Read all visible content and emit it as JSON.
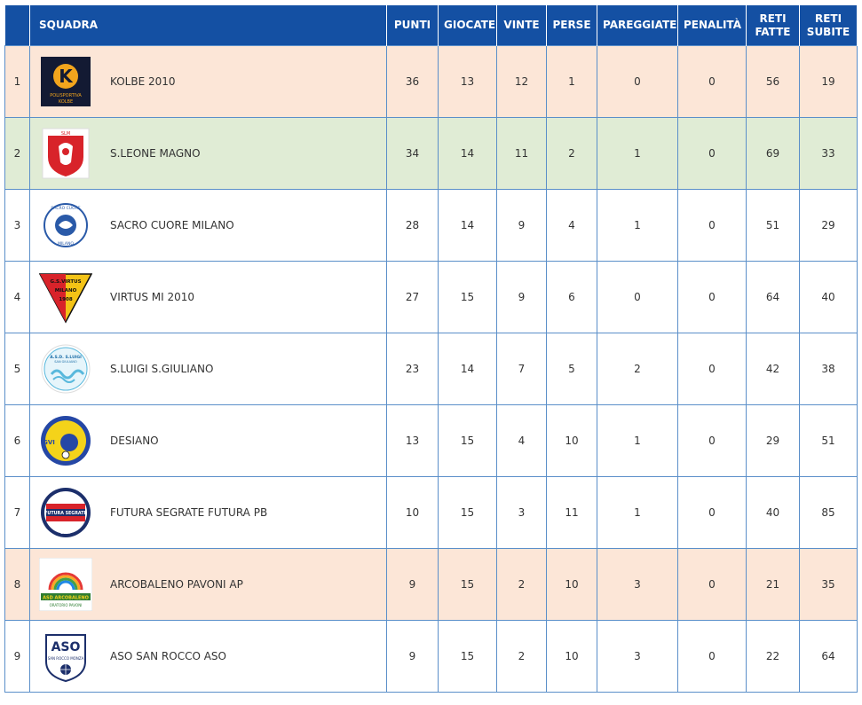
{
  "header": {
    "pos": "",
    "squadra": "SQUADRA",
    "punti": "PUNTI",
    "giocate": "GIOCATE",
    "vinte": "VINTE",
    "perse": "PERSE",
    "pareggiate": "PAREGGIATE",
    "penalita": "PENALITÀ",
    "reti_fatte_1": "RETI",
    "reti_fatte_2": "FATTE",
    "reti_subite_1": "RETI",
    "reti_subite_2": "SUBITE"
  },
  "colors": {
    "header_bg": "#1450a3",
    "row_orange": "#fce6d7",
    "row_green": "#e0ecd5",
    "border": "#5b8fc9"
  },
  "rows": [
    {
      "pos": "1",
      "team": "KOLBE 2010",
      "logo": "kolbe-logo",
      "logo_text_1": "K",
      "logo_text_2": "POLISPORTIVA",
      "logo_text_3": "KOLBE",
      "punti": "36",
      "giocate": "13",
      "vinte": "12",
      "perse": "1",
      "pareggiate": "0",
      "penalita": "0",
      "reti_fatte": "56",
      "reti_subite": "19",
      "highlight": "orange"
    },
    {
      "pos": "2",
      "team": "S.LEONE MAGNO",
      "logo": "leone-magno-logo",
      "logo_text_1": "SLM",
      "punti": "34",
      "giocate": "14",
      "vinte": "11",
      "perse": "2",
      "pareggiate": "1",
      "penalita": "0",
      "reti_fatte": "69",
      "reti_subite": "33",
      "highlight": "green"
    },
    {
      "pos": "3",
      "team": "SACRO CUORE MILANO",
      "logo": "sacro-cuore-logo",
      "logo_text_1": "SACRO CUORE",
      "logo_text_2": "MILANO",
      "punti": "28",
      "giocate": "14",
      "vinte": "9",
      "perse": "4",
      "pareggiate": "1",
      "penalita": "0",
      "reti_fatte": "51",
      "reti_subite": "29",
      "highlight": ""
    },
    {
      "pos": "4",
      "team": "VIRTUS MI 2010",
      "logo": "virtus-logo",
      "logo_text_1": "G.S.VIRTUS",
      "logo_text_2": "MILANO",
      "logo_text_3": "1908",
      "punti": "27",
      "giocate": "15",
      "vinte": "9",
      "perse": "6",
      "pareggiate": "0",
      "penalita": "0",
      "reti_fatte": "64",
      "reti_subite": "40",
      "highlight": ""
    },
    {
      "pos": "5",
      "team": "S.LUIGI S.GIULIANO",
      "logo": "sluigi-logo",
      "logo_text_1": "A.S.D. S.LUIGI",
      "logo_text_2": "SAN GIULIANO",
      "punti": "23",
      "giocate": "14",
      "vinte": "7",
      "perse": "5",
      "pareggiate": "2",
      "penalita": "0",
      "reti_fatte": "42",
      "reti_subite": "38",
      "highlight": ""
    },
    {
      "pos": "6",
      "team": "DESIANO",
      "logo": "desiano-logo",
      "logo_text_1": "GVI",
      "punti": "13",
      "giocate": "15",
      "vinte": "4",
      "perse": "10",
      "pareggiate": "1",
      "penalita": "0",
      "reti_fatte": "29",
      "reti_subite": "51",
      "highlight": ""
    },
    {
      "pos": "7",
      "team": "FUTURA SEGRATE FUTURA PB",
      "logo": "futura-segrate-logo",
      "logo_text_1": "A.S.D.",
      "logo_text_2": "FUTURA SEGRATE",
      "logo_text_3": "2017",
      "punti": "10",
      "giocate": "15",
      "vinte": "3",
      "perse": "11",
      "pareggiate": "1",
      "penalita": "0",
      "reti_fatte": "40",
      "reti_subite": "85",
      "highlight": ""
    },
    {
      "pos": "8",
      "team": "ARCOBALENO PAVONI AP",
      "logo": "arcobaleno-logo",
      "logo_text_1": "ASD ARCOBALENO",
      "logo_text_2": "ORATORIO PAVONI",
      "punti": "9",
      "giocate": "15",
      "vinte": "2",
      "perse": "10",
      "pareggiate": "3",
      "penalita": "0",
      "reti_fatte": "21",
      "reti_subite": "35",
      "highlight": "orange"
    },
    {
      "pos": "9",
      "team": "ASO SAN ROCCO ASO",
      "logo": "san-rocco-logo",
      "logo_text_1": "ASO",
      "logo_text_2": "SAN ROCCO MONZA",
      "punti": "9",
      "giocate": "15",
      "vinte": "2",
      "perse": "10",
      "pareggiate": "3",
      "penalita": "0",
      "reti_fatte": "22",
      "reti_subite": "64",
      "highlight": ""
    }
  ]
}
